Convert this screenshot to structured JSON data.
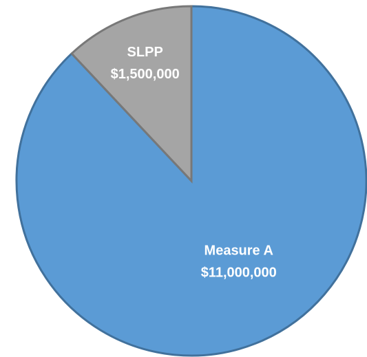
{
  "chart_data": {
    "type": "pie",
    "categories": [
      "Measure A",
      "SLPP"
    ],
    "values": [
      11000000,
      1500000
    ],
    "value_labels": [
      "$11,000,000",
      "$1,500,000"
    ],
    "colors": [
      "#5b9bd5",
      "#a5a5a5"
    ]
  }
}
